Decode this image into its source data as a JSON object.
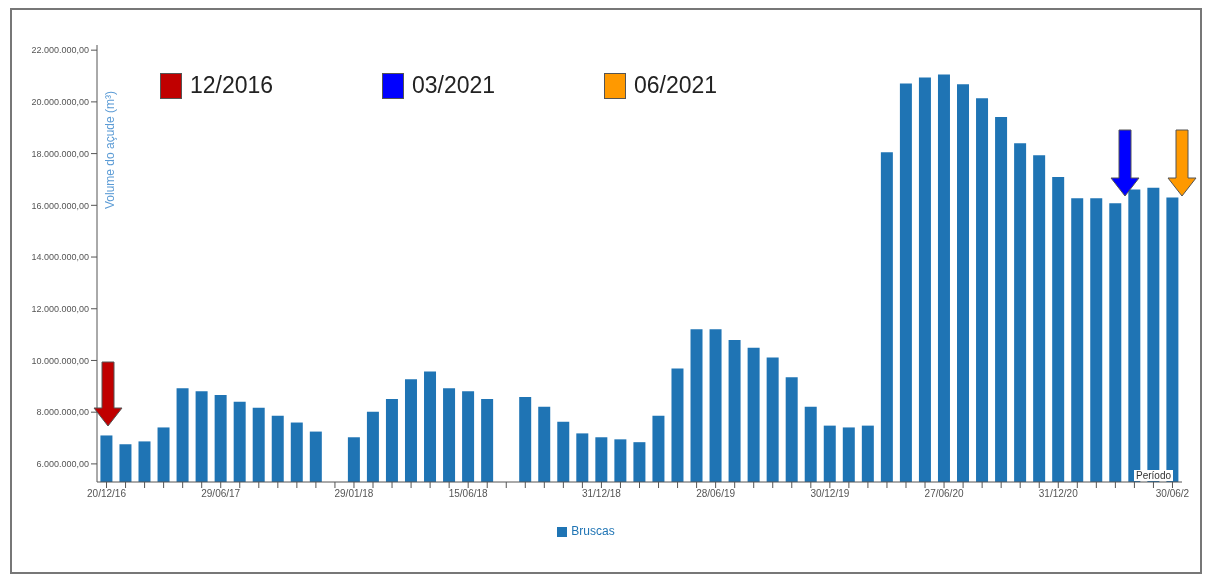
{
  "chart_data": {
    "type": "bar",
    "ylabel": "Volume do açude (m³)",
    "xlabel": "Período",
    "categories": [
      "20/12/16",
      null,
      null,
      null,
      null,
      null,
      "29/06/17",
      null,
      null,
      null,
      null,
      null,
      null,
      "29/01/18",
      null,
      null,
      null,
      null,
      null,
      "15/06/18",
      null,
      null,
      null,
      null,
      null,
      null,
      "31/12/18",
      null,
      null,
      null,
      null,
      null,
      "28/06/19",
      null,
      null,
      null,
      null,
      null,
      "30/12/19",
      null,
      null,
      null,
      null,
      null,
      "27/06/20",
      null,
      null,
      null,
      null,
      null,
      "31/12/20",
      null,
      null,
      null,
      null,
      null,
      "30/06/2"
    ],
    "series": [
      {
        "name": "Bruscas",
        "color": "#1f74b4",
        "values": [
          7100000,
          6760000,
          6870000,
          7410000,
          8930000,
          8810000,
          8660000,
          8400000,
          8170000,
          7860000,
          7600000,
          7250000,
          null,
          7030000,
          8020000,
          8510000,
          9270000,
          9570000,
          8930000,
          8810000,
          8510000,
          null,
          8590000,
          8210000,
          7630000,
          7180000,
          7030000,
          6950000,
          6840000,
          7860000,
          9690000,
          11210000,
          11210000,
          10790000,
          10490000,
          10110000,
          9350000,
          8210000,
          7480000,
          7410000,
          7480000,
          18050000,
          20710000,
          20940000,
          21060000,
          20680000,
          20140000,
          19420000,
          18400000,
          17940000,
          17100000,
          16270000,
          16270000,
          16080000,
          16610000,
          16680000,
          16300000
        ]
      }
    ],
    "ylim": [
      5300000,
      22200000
    ],
    "yticks": [
      {
        "value": 6000000,
        "label": "6.000.000,00"
      },
      {
        "value": 8000000,
        "label": "8.000.000,00"
      },
      {
        "value": 10000000,
        "label": "10.000.000,00"
      },
      {
        "value": 12000000,
        "label": "12.000.000,00"
      },
      {
        "value": 14000000,
        "label": "14.000.000,00"
      },
      {
        "value": 16000000,
        "label": "16.000.000,00"
      },
      {
        "value": 18000000,
        "label": "18.000.000,00"
      },
      {
        "value": 20000000,
        "label": "20.000.000,00"
      },
      {
        "value": 22000000,
        "label": "22.000.000,00"
      }
    ],
    "annotations": [
      "12/2016",
      "03/2021",
      "06/2021"
    ],
    "legend": "bottom",
    "grid": false
  }
}
